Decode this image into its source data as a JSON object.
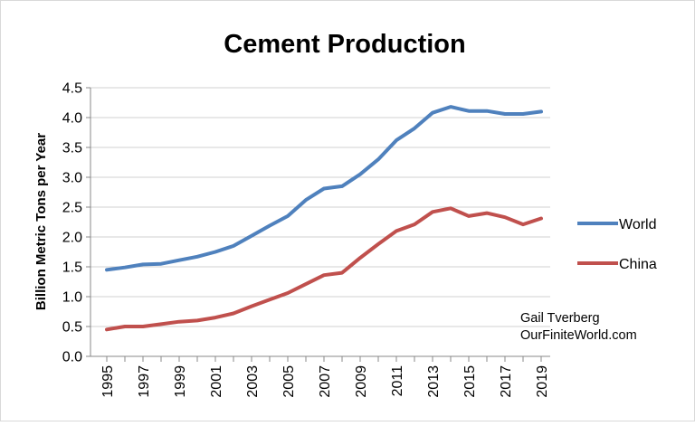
{
  "chart_data": {
    "type": "line",
    "title": "Cement Production",
    "ylabel": "Billion Metric Tons per Year",
    "xlabel": "",
    "ylim": [
      0,
      4.5
    ],
    "y_ticks": [
      "0.0",
      "0.5",
      "1.0",
      "1.5",
      "2.0",
      "2.5",
      "3.0",
      "3.5",
      "4.0",
      "4.5"
    ],
    "x": [
      1995,
      1996,
      1997,
      1998,
      1999,
      2000,
      2001,
      2002,
      2003,
      2004,
      2005,
      2006,
      2007,
      2008,
      2009,
      2010,
      2011,
      2012,
      2013,
      2014,
      2015,
      2016,
      2017,
      2018,
      2019
    ],
    "x_tick_labels": [
      "1995",
      "1997",
      "1999",
      "2001",
      "2003",
      "2005",
      "2007",
      "2009",
      "2011",
      "2013",
      "2015",
      "2017",
      "2019"
    ],
    "grid": "horizontal",
    "legend_position": "right",
    "series": [
      {
        "name": "World",
        "color": "#4F81BD",
        "values": [
          1.45,
          1.49,
          1.54,
          1.55,
          1.61,
          1.67,
          1.75,
          1.85,
          2.02,
          2.19,
          2.35,
          2.62,
          2.81,
          2.85,
          3.05,
          3.3,
          3.62,
          3.82,
          4.08,
          4.18,
          4.11,
          4.11,
          4.06,
          4.06,
          4.1
        ]
      },
      {
        "name": "China",
        "color": "#C0504D",
        "values": [
          0.45,
          0.5,
          0.5,
          0.54,
          0.58,
          0.6,
          0.65,
          0.72,
          0.84,
          0.95,
          1.06,
          1.21,
          1.36,
          1.4,
          1.65,
          1.88,
          2.1,
          2.21,
          2.42,
          2.48,
          2.35,
          2.4,
          2.33,
          2.21,
          2.31
        ]
      }
    ],
    "annotation": [
      "Gail Tverberg",
      "OurFiniteWorld.com"
    ]
  }
}
